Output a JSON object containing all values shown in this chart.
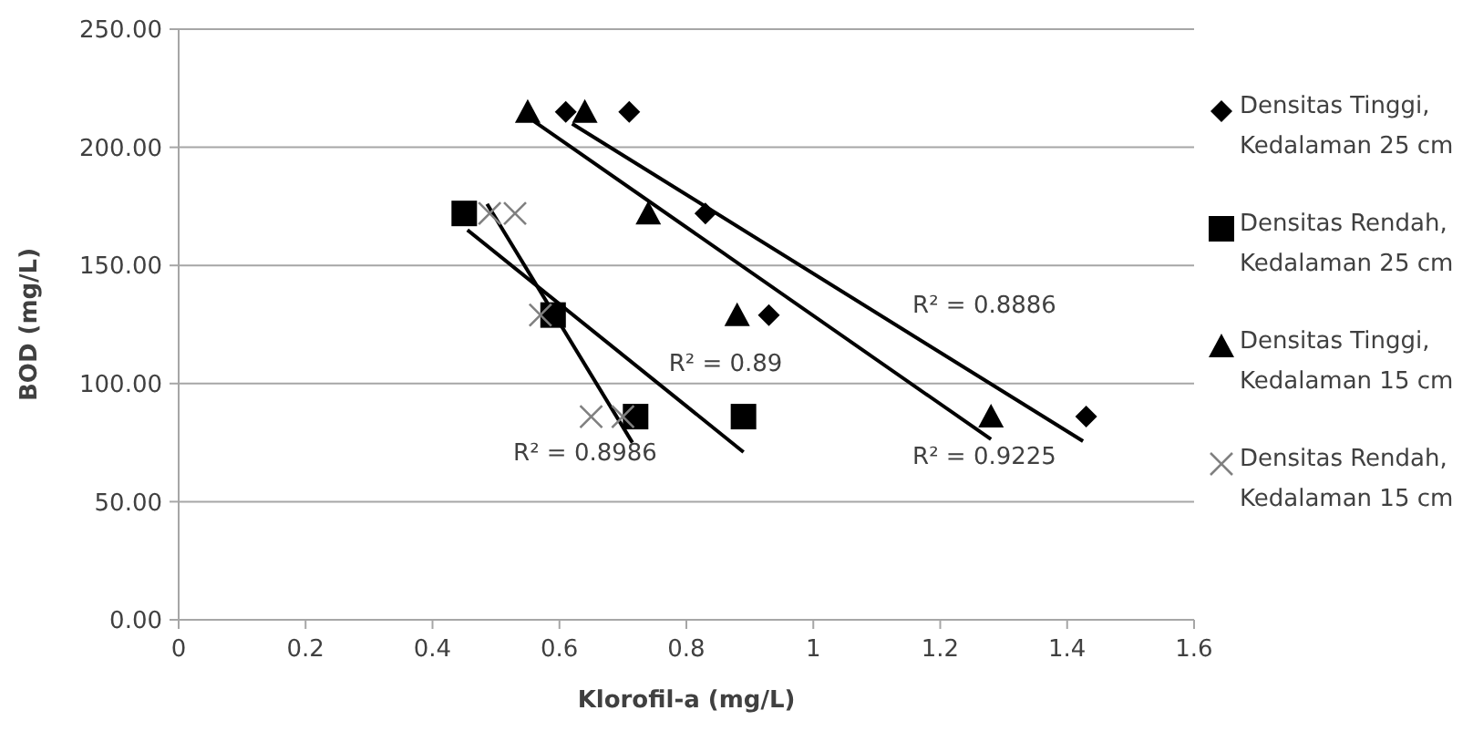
{
  "chart_data": {
    "type": "scatter",
    "xlabel": "Klorofil-a (mg/L)",
    "ylabel": "BOD (mg/L)",
    "xlim": [
      0,
      1.6
    ],
    "xticks": [
      0,
      0.2,
      0.4,
      0.6,
      0.8,
      1,
      1.2,
      1.4,
      1.6
    ],
    "ylim": [
      0,
      250
    ],
    "yticks": [
      {
        "value": 0,
        "label": "0.00"
      },
      {
        "value": 50,
        "label": "50.00"
      },
      {
        "value": 100,
        "label": "100.00"
      },
      {
        "value": 150,
        "label": "150.00"
      },
      {
        "value": 200,
        "label": "200.00"
      },
      {
        "value": 250,
        "label": "250.00"
      }
    ],
    "grid": "y",
    "legend": "right",
    "series": [
      {
        "name": "Densitas Tinggi, Kedalaman 25 cm",
        "color": "#000000",
        "marker": "diamond",
        "x": [
          0.61,
          0.71,
          0.83,
          0.93,
          1.43
        ],
        "values": [
          215,
          215,
          172,
          129,
          86
        ]
      },
      {
        "name": "Densitas Rendah, Kedalaman 25 cm",
        "color": "#000000",
        "marker": "square",
        "x": [
          0.45,
          0.59,
          0.72,
          0.89
        ],
        "values": [
          172,
          129,
          86,
          86
        ]
      },
      {
        "name": "Densitas Tinggi, Kedalaman 15 cm",
        "color": "#000000",
        "marker": "triangle",
        "x": [
          0.55,
          0.64,
          0.74,
          0.88,
          1.28
        ],
        "values": [
          215,
          215,
          172,
          129,
          86
        ]
      },
      {
        "name": "Densitas Rendah, Kedalaman 15 cm",
        "color": "#808080",
        "marker": "cross",
        "x": [
          0.49,
          0.53,
          0.57,
          0.65,
          0.7
        ],
        "values": [
          172,
          172,
          129,
          86,
          86
        ]
      },
      {
        "type": "line",
        "color": "#000000",
        "marker": "none",
        "x": [
          0.62,
          1.425
        ],
        "values": [
          210,
          75.6
        ]
      },
      {
        "type": "line",
        "color": "#000000",
        "marker": "none",
        "x": [
          0.455,
          0.89
        ],
        "values": [
          165,
          71
        ]
      },
      {
        "type": "line",
        "color": "#000000",
        "marker": "none",
        "x": [
          0.56,
          1.28
        ],
        "values": [
          211,
          76.4
        ]
      },
      {
        "type": "line",
        "color": "#000000",
        "marker": "none",
        "x": [
          0.486,
          0.715
        ],
        "values": [
          176,
          75
        ]
      }
    ],
    "annotations": [
      "R² = 0.8886",
      "R² = 0.89",
      "R² = 0.9225",
      "R² = 0.8986"
    ]
  }
}
